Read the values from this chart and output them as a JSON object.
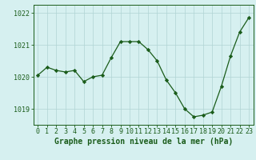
{
  "x": [
    0,
    1,
    2,
    3,
    4,
    5,
    6,
    7,
    8,
    9,
    10,
    11,
    12,
    13,
    14,
    15,
    16,
    17,
    18,
    19,
    20,
    21,
    22,
    23
  ],
  "y": [
    1020.05,
    1020.3,
    1020.2,
    1020.15,
    1020.2,
    1019.85,
    1020.0,
    1020.05,
    1020.6,
    1021.1,
    1021.1,
    1021.1,
    1020.85,
    1020.5,
    1019.9,
    1019.5,
    1019.0,
    1018.75,
    1018.8,
    1018.9,
    1019.7,
    1020.65,
    1021.4,
    1021.85
  ],
  "line_color": "#1a5c1a",
  "marker": "D",
  "marker_size": 2.2,
  "bg_color": "#d6f0f0",
  "grid_color": "#b0d4d4",
  "ylim": [
    1018.5,
    1022.25
  ],
  "yticks": [
    1019,
    1020,
    1021,
    1022
  ],
  "xlim": [
    -0.5,
    23.5
  ],
  "xlabel": "Graphe pression niveau de la mer (hPa)",
  "xlabel_fontsize": 7.0,
  "tick_fontsize": 6.0,
  "linewidth": 0.9
}
